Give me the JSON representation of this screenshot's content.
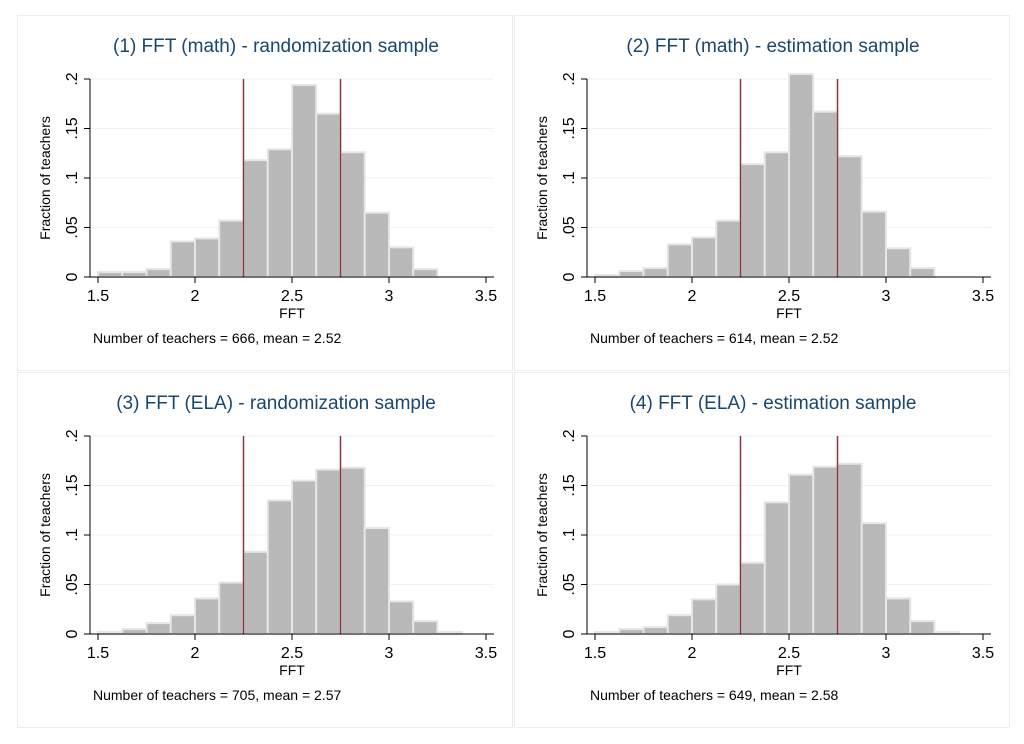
{
  "colors": {
    "bar_fill": "#b9b9b9",
    "bar_stroke": "#e6e6e6",
    "vline": "#90353b",
    "grid": "#eaf2f3",
    "title": "#1a476f"
  },
  "chart_data": [
    {
      "type": "bar",
      "title": "(1) FFT (math) - randomization sample",
      "xlabel": "FFT",
      "ylabel": "Fraction of teachers",
      "xlim": [
        1.5,
        3.5
      ],
      "ylim": [
        0,
        0.2
      ],
      "x_ticks": [
        "1.5",
        "2",
        "2.5",
        "3",
        "3.5"
      ],
      "y_ticks": [
        "0",
        ".05",
        ".1",
        ".15",
        ".2"
      ],
      "grid": true,
      "bin_width": 0.125,
      "bin_starts": [
        1.5,
        1.625,
        1.75,
        1.875,
        2.0,
        2.125,
        2.25,
        2.375,
        2.5,
        2.625,
        2.75,
        2.875,
        3.0,
        3.125,
        3.25,
        3.375
      ],
      "values": [
        0.005,
        0.005,
        0.008,
        0.036,
        0.039,
        0.057,
        0.118,
        0.129,
        0.194,
        0.165,
        0.126,
        0.065,
        0.03,
        0.008,
        0.0,
        0.0
      ],
      "vlines": [
        2.25,
        2.75
      ],
      "note": "Number of teachers = 666, mean = 2.52"
    },
    {
      "type": "bar",
      "title": "(2) FFT (math) - estimation sample",
      "xlabel": "FFT",
      "ylabel": "Fraction of teachers",
      "xlim": [
        1.5,
        3.5
      ],
      "ylim": [
        0,
        0.2
      ],
      "x_ticks": [
        "1.5",
        "2",
        "2.5",
        "3",
        "3.5"
      ],
      "y_ticks": [
        "0",
        ".05",
        ".1",
        ".15",
        ".2"
      ],
      "grid": true,
      "bin_width": 0.125,
      "bin_starts": [
        1.5,
        1.625,
        1.75,
        1.875,
        2.0,
        2.125,
        2.25,
        2.375,
        2.5,
        2.625,
        2.75,
        2.875,
        3.0,
        3.125,
        3.25,
        3.375
      ],
      "values": [
        0.002,
        0.006,
        0.009,
        0.033,
        0.04,
        0.057,
        0.114,
        0.126,
        0.205,
        0.167,
        0.122,
        0.066,
        0.029,
        0.009,
        0.0,
        0.0
      ],
      "vlines": [
        2.25,
        2.75
      ],
      "note": "Number of teachers = 614, mean = 2.52"
    },
    {
      "type": "bar",
      "title": "(3) FFT (ELA) - randomization sample",
      "xlabel": "FFT",
      "ylabel": "Fraction of teachers",
      "xlim": [
        1.5,
        3.5
      ],
      "ylim": [
        0,
        0.2
      ],
      "x_ticks": [
        "1.5",
        "2",
        "2.5",
        "3",
        "3.5"
      ],
      "y_ticks": [
        "0",
        ".05",
        ".1",
        ".15",
        ".2"
      ],
      "grid": true,
      "bin_width": 0.125,
      "bin_starts": [
        1.5,
        1.625,
        1.75,
        1.875,
        2.0,
        2.125,
        2.25,
        2.375,
        2.5,
        2.625,
        2.75,
        2.875,
        3.0,
        3.125,
        3.25,
        3.375
      ],
      "values": [
        0.002,
        0.005,
        0.011,
        0.019,
        0.036,
        0.052,
        0.083,
        0.135,
        0.155,
        0.166,
        0.168,
        0.107,
        0.033,
        0.013,
        0.002,
        0.0
      ],
      "vlines": [
        2.25,
        2.75
      ],
      "note": "Number of teachers = 705, mean = 2.57"
    },
    {
      "type": "bar",
      "title": "(4) FFT (ELA) - estimation sample",
      "xlabel": "FFT",
      "ylabel": "Fraction of teachers",
      "xlim": [
        1.5,
        3.5
      ],
      "ylim": [
        0,
        0.2
      ],
      "x_ticks": [
        "1.5",
        "2",
        "2.5",
        "3",
        "3.5"
      ],
      "y_ticks": [
        "0",
        ".05",
        ".1",
        ".15",
        ".2"
      ],
      "grid": true,
      "bin_width": 0.125,
      "bin_starts": [
        1.5,
        1.625,
        1.75,
        1.875,
        2.0,
        2.125,
        2.25,
        2.375,
        2.5,
        2.625,
        2.75,
        2.875,
        3.0,
        3.125,
        3.25,
        3.375
      ],
      "values": [
        0.002,
        0.005,
        0.007,
        0.019,
        0.035,
        0.05,
        0.072,
        0.133,
        0.161,
        0.169,
        0.172,
        0.112,
        0.036,
        0.013,
        0.002,
        0.0
      ],
      "vlines": [
        2.25,
        2.75
      ],
      "note": "Number of teachers = 649, mean = 2.58"
    }
  ]
}
